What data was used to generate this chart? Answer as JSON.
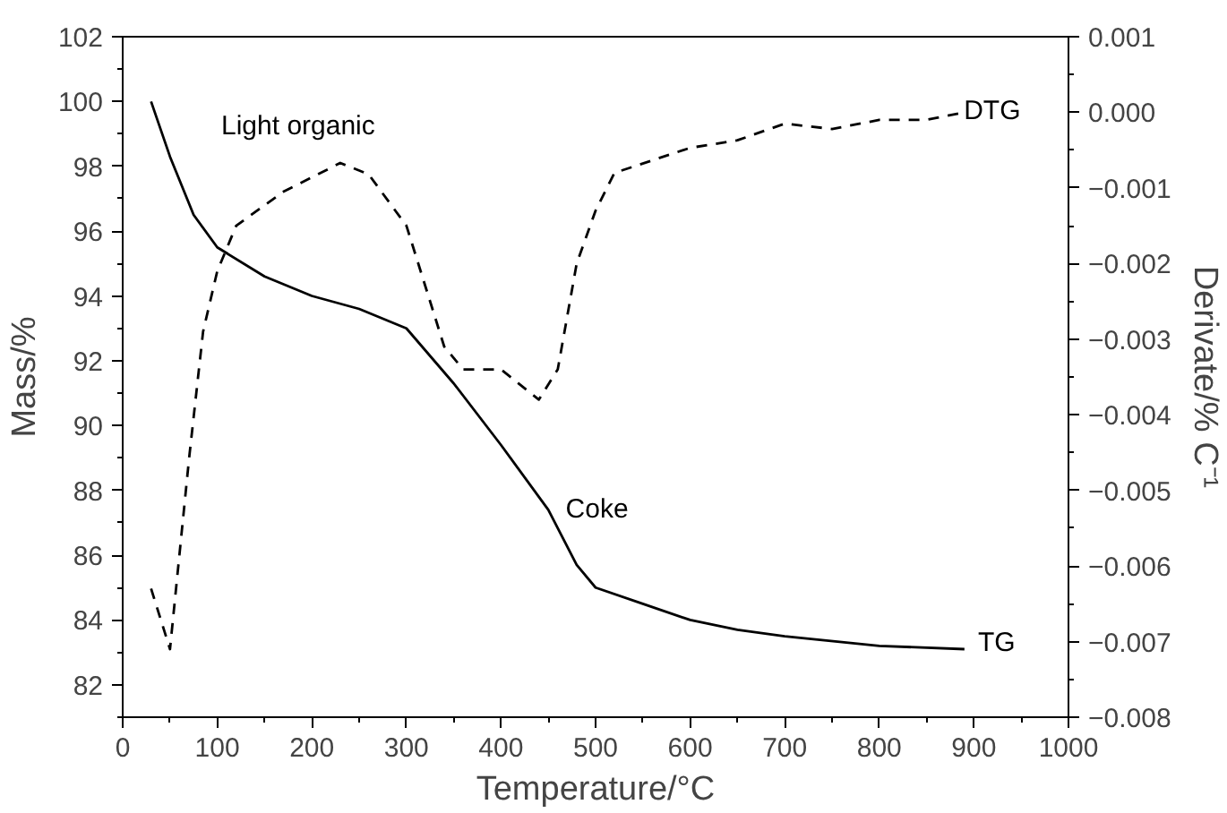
{
  "chart_data": {
    "type": "line",
    "xlabel": "Temperature/°C",
    "ylabel": "Mass/%",
    "y2label": "Derivate/% C⁻¹",
    "xlim": [
      0,
      1000
    ],
    "xticks": [
      0,
      {
        "value": 50,
        "label": null
      },
      100,
      {
        "value": 150,
        "label": null
      },
      200,
      {
        "value": 250,
        "label": null
      },
      300,
      {
        "value": 350,
        "label": null
      },
      400,
      {
        "value": 450,
        "label": null
      },
      500,
      {
        "value": 550,
        "label": null
      },
      600,
      {
        "value": 650,
        "label": null
      },
      700,
      {
        "value": 750,
        "label": null
      },
      800,
      {
        "value": 850,
        "label": null
      },
      900,
      {
        "value": 950,
        "label": null
      },
      1000
    ],
    "ylim": [
      81,
      102
    ],
    "yticks": [
      {
        "value": 81,
        "label": null
      },
      82,
      {
        "value": 83,
        "label": null
      },
      84,
      {
        "value": 85,
        "label": null
      },
      86,
      {
        "value": 87,
        "label": null
      },
      88,
      {
        "value": 89,
        "label": null
      },
      90,
      {
        "value": 91,
        "label": null
      },
      92,
      {
        "value": 93,
        "label": null
      },
      94,
      {
        "value": 95,
        "label": null
      },
      96,
      {
        "value": 97,
        "label": null
      },
      98,
      {
        "value": 99,
        "label": null
      },
      100,
      {
        "value": 101,
        "label": null
      },
      102
    ],
    "y2lim": [
      -0.008,
      0.001
    ],
    "y2ticks": [
      {
        "value": -0.008,
        "label": "−0.008"
      },
      {
        "value": -0.0075,
        "label": null
      },
      {
        "value": -0.007,
        "label": "−0.007"
      },
      {
        "value": -0.0065,
        "label": null
      },
      {
        "value": -0.006,
        "label": "−0.006"
      },
      {
        "value": -0.0055,
        "label": null
      },
      {
        "value": -0.005,
        "label": "−0.005"
      },
      {
        "value": -0.0045,
        "label": null
      },
      {
        "value": -0.004,
        "label": "−0.004"
      },
      {
        "value": -0.0035,
        "label": null
      },
      {
        "value": -0.003,
        "label": "−0.003"
      },
      {
        "value": -0.0025,
        "label": null
      },
      {
        "value": -0.002,
        "label": "−0.002"
      },
      {
        "value": -0.0015,
        "label": null
      },
      {
        "value": -0.001,
        "label": "−0.001"
      },
      {
        "value": -0.0005,
        "label": null
      },
      {
        "value": 0.0,
        "label": "0.000"
      },
      {
        "value": 0.0005,
        "label": null
      },
      {
        "value": 0.001,
        "label": "0.001"
      }
    ],
    "grid": false,
    "series": [
      {
        "color": "#000000",
        "line_style": "solid",
        "x": [
          30,
          50,
          75,
          100,
          150,
          200,
          250,
          300,
          350,
          400,
          450,
          480,
          500,
          550,
          600,
          650,
          700,
          800,
          890
        ],
        "values": [
          100,
          98.3,
          96.5,
          95.5,
          94.6,
          94,
          93.6,
          93.0,
          91.3,
          89.4,
          87.4,
          85.7,
          85.0,
          84.5,
          84.0,
          83.7,
          83.5,
          83.2,
          83.1
        ]
      },
      {
        "color": "#000000",
        "line_style": "dashed",
        "axis": "y2",
        "x": [
          30,
          50,
          70,
          85,
          100,
          120,
          170,
          230,
          260,
          300,
          340,
          360,
          400,
          440,
          460,
          480,
          500,
          520,
          600,
          650,
          700,
          750,
          800,
          850,
          890
        ],
        "values": [
          -0.0063,
          -0.0071,
          -0.0046,
          -0.0029,
          -0.0021,
          -0.0015,
          -0.00105,
          -0.00067,
          -0.00082,
          -0.0015,
          -0.0031,
          -0.0034,
          -0.0034,
          -0.0038,
          -0.0034,
          -0.002,
          -0.0013,
          -0.0008,
          -0.00047,
          -0.00037,
          -0.00015,
          -0.00022,
          -0.0001,
          -0.0001,
          0.0
        ]
      }
    ],
    "annotations": [
      "Light organic",
      {
        "text": "Coke",
        "x": 457,
        "y": 87.4
      },
      {
        "text": "DTG",
        "x": 878,
        "y": 99.7
      },
      {
        "text": "TG",
        "x": 893,
        "y": 83.3
      }
    ]
  }
}
